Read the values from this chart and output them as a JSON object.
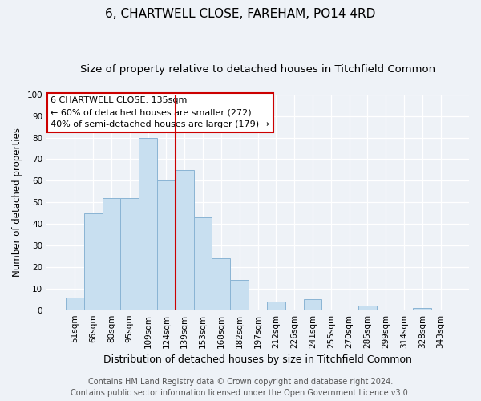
{
  "title": "6, CHARTWELL CLOSE, FAREHAM, PO14 4RD",
  "subtitle": "Size of property relative to detached houses in Titchfield Common",
  "xlabel": "Distribution of detached houses by size in Titchfield Common",
  "ylabel": "Number of detached properties",
  "bar_labels": [
    "51sqm",
    "66sqm",
    "80sqm",
    "95sqm",
    "109sqm",
    "124sqm",
    "139sqm",
    "153sqm",
    "168sqm",
    "182sqm",
    "197sqm",
    "212sqm",
    "226sqm",
    "241sqm",
    "255sqm",
    "270sqm",
    "285sqm",
    "299sqm",
    "314sqm",
    "328sqm",
    "343sqm"
  ],
  "bar_heights": [
    6,
    45,
    52,
    52,
    80,
    60,
    65,
    43,
    24,
    14,
    0,
    4,
    0,
    5,
    0,
    0,
    2,
    0,
    0,
    1,
    0
  ],
  "bar_color": "#c8dff0",
  "bar_edge_color": "#8ab4d4",
  "vline_color": "#cc0000",
  "annotation_title": "6 CHARTWELL CLOSE: 135sqm",
  "annotation_line1": "← 60% of detached houses are smaller (272)",
  "annotation_line2": "40% of semi-detached houses are larger (179) →",
  "annotation_box_color": "#ffffff",
  "annotation_border_color": "#cc0000",
  "ylim": [
    0,
    100
  ],
  "yticks": [
    0,
    10,
    20,
    30,
    40,
    50,
    60,
    70,
    80,
    90,
    100
  ],
  "footer1": "Contains HM Land Registry data © Crown copyright and database right 2024.",
  "footer2": "Contains public sector information licensed under the Open Government Licence v3.0.",
  "title_fontsize": 11,
  "subtitle_fontsize": 9.5,
  "xlabel_fontsize": 9,
  "ylabel_fontsize": 8.5,
  "tick_fontsize": 7.5,
  "annotation_fontsize": 8,
  "footer_fontsize": 7,
  "bg_color": "#eef2f7"
}
